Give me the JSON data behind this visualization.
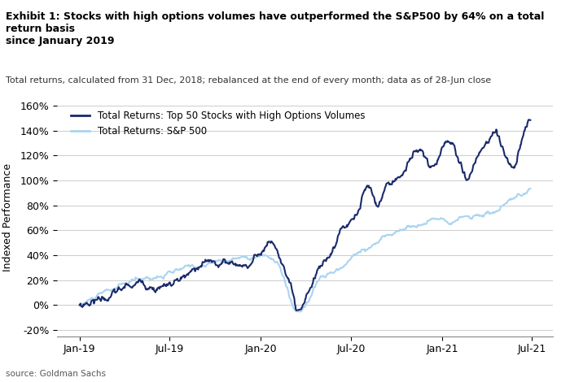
{
  "title_bold": "Exhibit 1: Stocks with high options volumes have outperformed the S&P500 by 64% on a total return basis\nsince January 2019",
  "subtitle": "Total returns, calculated from 31 Dec, 2018; rebalanced at the end of every month; data as of 28-Jun close",
  "ylabel": "Indexed Performance",
  "source": "source: Goldman Sachs",
  "legend1": "Total Returns: Top 50 Stocks with High Options Volumes",
  "legend2": "Total Returns: S&P 500",
  "color_hov": "#1a2a6b",
  "color_sp": "#aad4f0",
  "ylim": [
    -0.25,
    1.65
  ],
  "yticks": [
    -0.2,
    0.0,
    0.2,
    0.4,
    0.6,
    0.8,
    1.0,
    1.2,
    1.4,
    1.6
  ],
  "background": "#ffffff",
  "grid_color": "#cccccc"
}
